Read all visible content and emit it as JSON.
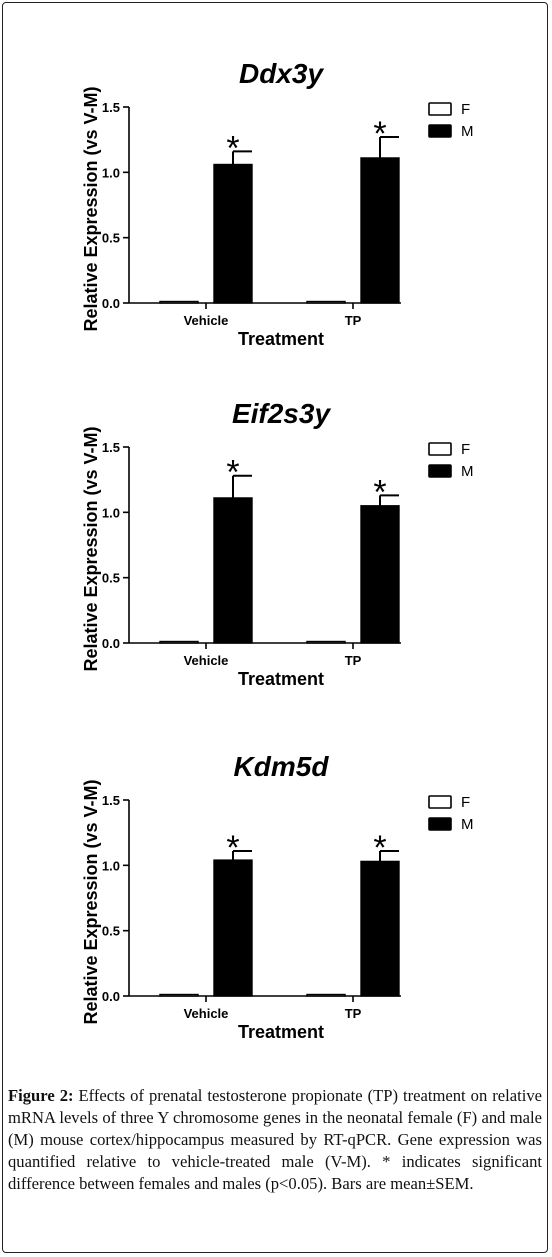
{
  "figure": {
    "caption_label": "Figure 2:",
    "caption_text": " Effects of prenatal testosterone propionate (TP) treatment on relative mRNA levels of three Y chromosome genes in the neonatal female (F) and male (M) mouse cortex/hippocampus measured by RT-qPCR. Gene expression was quantified relative to vehicle-treated male (V-M). * indicates significant difference between females and males (p<0.05). Bars are mean±SEM."
  },
  "chart_data": [
    {
      "type": "bar",
      "title": "Ddx3y",
      "xlabel": "Treatment",
      "ylabel": "Relative  Expression  (vs V-M)",
      "categories": [
        "Vehicle",
        "TP"
      ],
      "ylim": [
        0,
        1.5
      ],
      "yticks": [
        "0.0",
        "0.5",
        "1.0",
        "1.5"
      ],
      "series": [
        {
          "name": "F",
          "values": [
            0.01,
            0.01
          ],
          "errors": [
            0.005,
            0.005
          ],
          "color": "#ffffff"
        },
        {
          "name": "M",
          "values": [
            1.06,
            1.11
          ],
          "errors": [
            0.1,
            0.16
          ],
          "color": "#000000"
        }
      ],
      "significance": [
        "*",
        "*"
      ],
      "legend": "top-right"
    },
    {
      "type": "bar",
      "title": "Eif2s3y",
      "xlabel": "Treatment",
      "ylabel": "Relative  Expression  (vs V-M)",
      "categories": [
        "Vehicle",
        "TP"
      ],
      "ylim": [
        0,
        1.5
      ],
      "yticks": [
        "0.0",
        "0.5",
        "1.0",
        "1.5"
      ],
      "series": [
        {
          "name": "F",
          "values": [
            0.01,
            0.01
          ],
          "errors": [
            0.005,
            0.005
          ],
          "color": "#ffffff"
        },
        {
          "name": "M",
          "values": [
            1.11,
            1.05
          ],
          "errors": [
            0.17,
            0.08
          ],
          "color": "#000000"
        }
      ],
      "significance": [
        "*",
        "*"
      ],
      "legend": "top-right"
    },
    {
      "type": "bar",
      "title": "Kdm5d",
      "xlabel": "Treatment",
      "ylabel": "Relative  Expression  (vs V-M)",
      "categories": [
        "Vehicle",
        "TP"
      ],
      "ylim": [
        0,
        1.5
      ],
      "yticks": [
        "0.0",
        "0.5",
        "1.0",
        "1.5"
      ],
      "series": [
        {
          "name": "F",
          "values": [
            0.01,
            0.01
          ],
          "errors": [
            0.005,
            0.005
          ],
          "color": "#ffffff"
        },
        {
          "name": "M",
          "values": [
            1.04,
            1.03
          ],
          "errors": [
            0.07,
            0.08
          ],
          "color": "#000000"
        }
      ],
      "significance": [
        "*",
        "*"
      ],
      "legend": "top-right"
    }
  ]
}
